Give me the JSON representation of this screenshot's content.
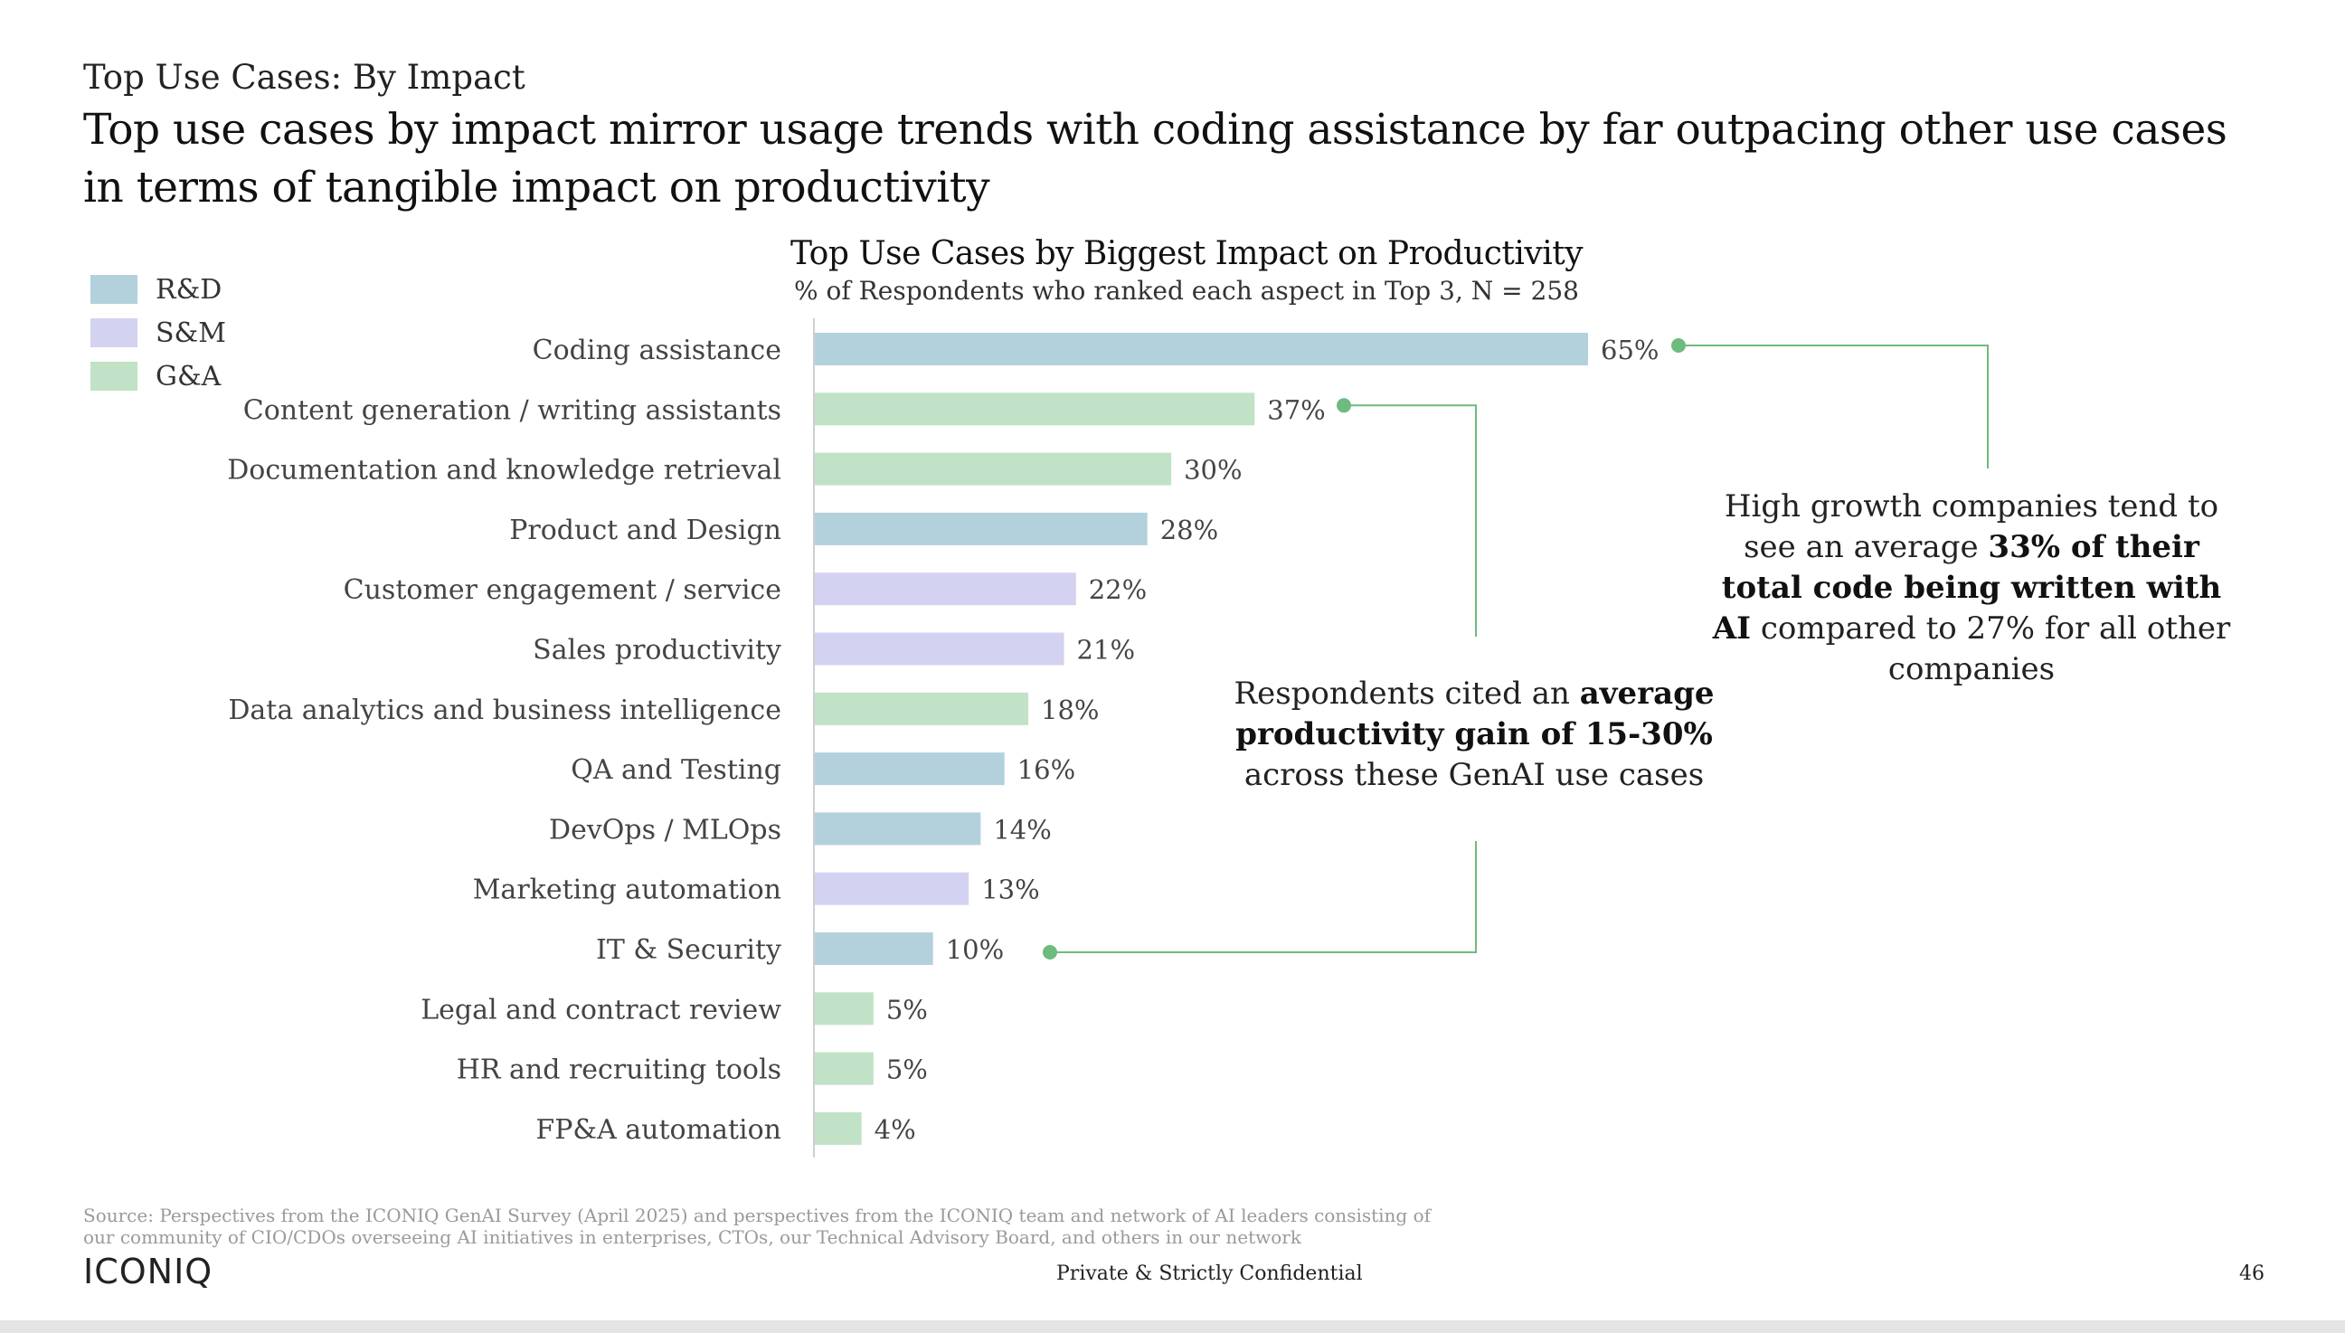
{
  "header": {
    "section_label": "Top Use Cases: By Impact",
    "headline": "Top use cases by impact mirror usage trends with coding assistance by far outpacing other use cases in terms of tangible impact on productivity"
  },
  "legend": [
    {
      "label": "R&D",
      "color": "#b3d1dc"
    },
    {
      "label": "S&M",
      "color": "#d3d2f0"
    },
    {
      "label": "G&A",
      "color": "#c1e2c6"
    }
  ],
  "chart_data": {
    "type": "bar",
    "orientation": "horizontal",
    "title": "Top Use Cases by Biggest Impact on Productivity",
    "subtitle": "% of Respondents who ranked each aspect in Top 3, N = 258",
    "categories": [
      "Coding assistance",
      "Content generation / writing assistants",
      "Documentation and knowledge retrieval",
      "Product and Design",
      "Customer engagement / service",
      "Sales productivity",
      "Data analytics and business intelligence",
      "QA and Testing",
      "DevOps / MLOps",
      "Marketing automation",
      "IT & Security",
      "Legal and contract review",
      "HR and recruiting tools",
      "FP&A automation"
    ],
    "values": [
      65,
      37,
      30,
      28,
      22,
      21,
      18,
      16,
      14,
      13,
      10,
      5,
      5,
      4
    ],
    "value_labels": [
      "65%",
      "37%",
      "30%",
      "28%",
      "22%",
      "21%",
      "18%",
      "16%",
      "14%",
      "13%",
      "10%",
      "5%",
      "5%",
      "4%"
    ],
    "groups": [
      "R&D",
      "G&A",
      "G&A",
      "R&D",
      "S&M",
      "S&M",
      "G&A",
      "R&D",
      "R&D",
      "S&M",
      "R&D",
      "G&A",
      "G&A",
      "G&A"
    ],
    "xlim": [
      0,
      100
    ],
    "grid": false,
    "legend_position": "top-left"
  },
  "callouts": {
    "code": {
      "part1": "High growth companies tend to see an average ",
      "bold": "33% of their total code being written with AI",
      "part2": " compared to 27% for all other companies"
    },
    "gain": {
      "part1": "Respondents cited an ",
      "bold": "average productivity gain of 15-30%",
      "part2": " across these GenAI use cases"
    },
    "line_color": "#6dbb7d"
  },
  "footer": {
    "source": "Source: Perspectives from the ICONIQ GenAI Survey (April 2025) and perspectives from the ICONIQ team and network of AI leaders consisting of our community of CIO/CDOs overseeing AI initiatives in enterprises, CTOs, our Technical Advisory Board, and others in our network",
    "logo": "ICONIQ",
    "confidential": "Private & Strictly Confidential",
    "page_number": "46"
  }
}
